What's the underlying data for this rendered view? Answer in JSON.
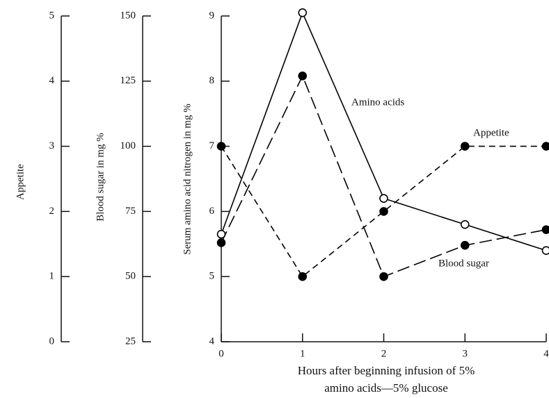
{
  "chart_data": {
    "type": "line",
    "x_label": [
      "Hours after beginning infusion of 5%",
      "amino acids—5% glucose"
    ],
    "y_label": "Serum amino acid nitrogen in mg %",
    "y2_label": "Blood sugar in mg %",
    "y3_label": "Appetite",
    "x": [
      0,
      1,
      2,
      3,
      4
    ],
    "xlim": [
      0,
      4
    ],
    "xticks": [
      0,
      1,
      2,
      3,
      4
    ],
    "ylim": [
      4,
      9
    ],
    "yticks": [
      4,
      5,
      6,
      7,
      8,
      9
    ],
    "y2lim": [
      25,
      150
    ],
    "y2ticks": [
      25,
      50,
      75,
      100,
      125,
      150
    ],
    "y3lim": [
      0,
      5
    ],
    "y3ticks": [
      0,
      1,
      2,
      3,
      4,
      5
    ],
    "series": [
      {
        "name": "Amino acids",
        "color": "#000000",
        "axis": "y",
        "marker": "open",
        "dash": "none",
        "values": [
          5.65,
          9.05,
          6.2,
          5.8,
          5.4
        ]
      },
      {
        "name": "Blood sugar",
        "color": "#000000",
        "axis": "y2",
        "marker": "filled",
        "dash": "long",
        "values": [
          63,
          127,
          50,
          62,
          68
        ]
      },
      {
        "name": "Appetite",
        "color": "#000000",
        "axis": "y3",
        "marker": "filled",
        "dash": "short",
        "values": [
          3,
          1,
          2,
          3,
          3
        ]
      }
    ]
  }
}
